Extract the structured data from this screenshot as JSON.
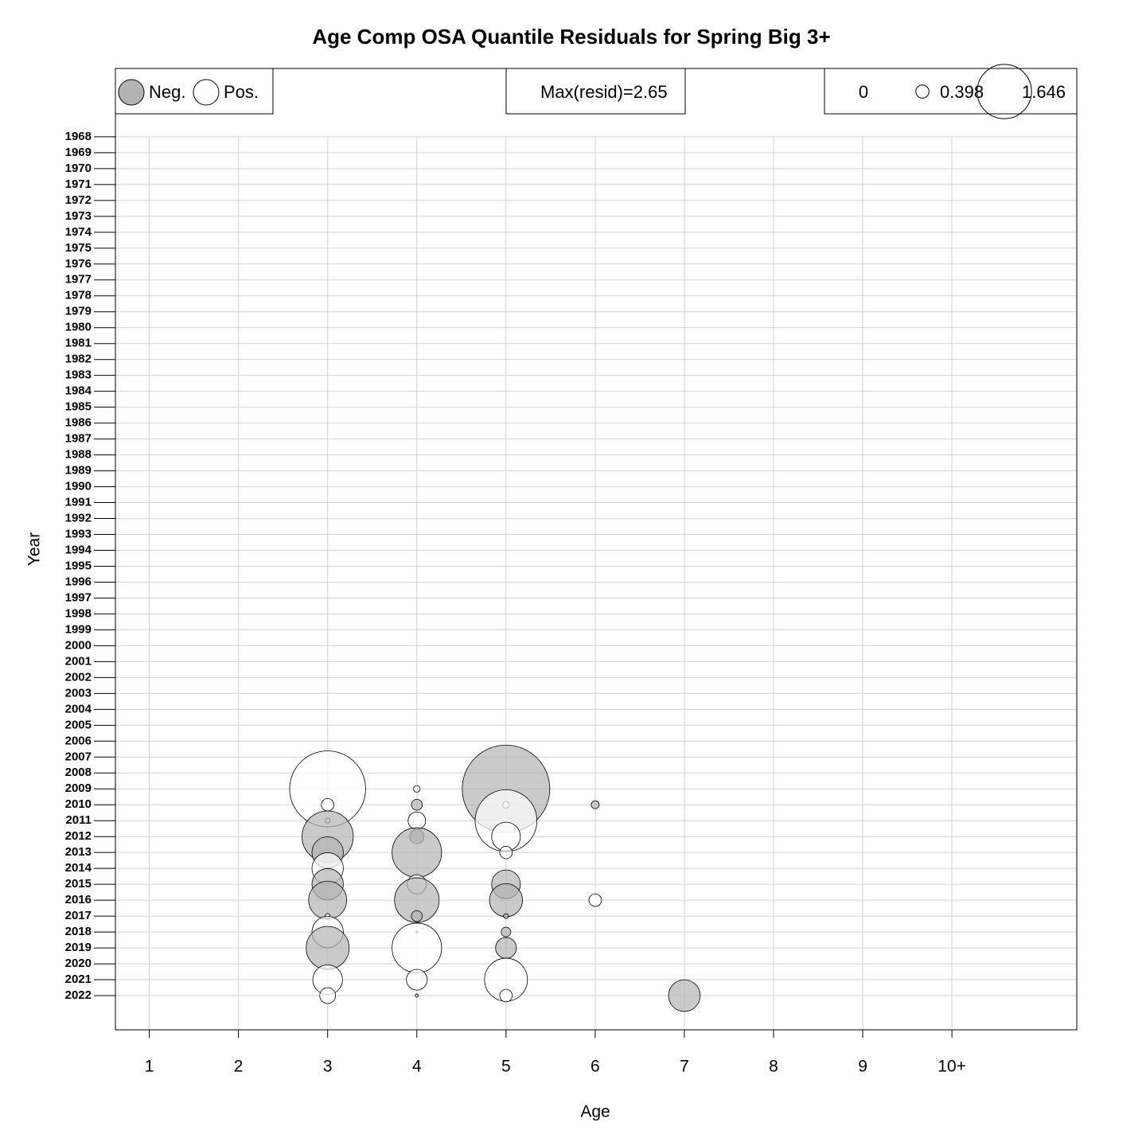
{
  "chart_data": {
    "type": "bubble",
    "title": "Age Comp OSA Quantile Residuals for Spring Big 3+",
    "xlabel": "Age",
    "ylabel": "Year",
    "xlim": [
      0.62,
      11.4
    ],
    "xticks": [
      1,
      2,
      3,
      4,
      5,
      6,
      7,
      8,
      9,
      {
        "value": 10,
        "label": "10+"
      }
    ],
    "ylim": [
      2024.15,
      1963.7
    ],
    "yticks": [
      1968,
      1969,
      1970,
      1971,
      1972,
      1973,
      1974,
      1975,
      1976,
      1977,
      1978,
      1979,
      1980,
      1981,
      1982,
      1983,
      1984,
      1985,
      1986,
      1987,
      1988,
      1989,
      1990,
      1991,
      1992,
      1993,
      1994,
      1995,
      1996,
      1997,
      1998,
      1999,
      2000,
      2001,
      2002,
      2003,
      2004,
      2005,
      2006,
      2007,
      2008,
      2009,
      2010,
      2011,
      2012,
      2013,
      2014,
      2015,
      2016,
      2017,
      2018,
      2019,
      2020,
      2021,
      2022
    ],
    "grid": true,
    "neg_label": "Neg.",
    "pos_label": "Pos.",
    "neg_color": "#b3b3b3",
    "pos_color": "#ffffff",
    "max_label": "Max(resid)=2.65",
    "size_legend": [
      0,
      0.398,
      1.646
    ],
    "points": [
      {
        "age": 3,
        "year": 2009,
        "value": 2.3
      },
      {
        "age": 3,
        "year": 2010,
        "value": 0.38
      },
      {
        "age": 3,
        "year": 2011,
        "value": 0.15
      },
      {
        "age": 3,
        "year": 2012,
        "value": -1.55
      },
      {
        "age": 3,
        "year": 2013,
        "value": -0.95
      },
      {
        "age": 3,
        "year": 2014,
        "value": 0.95
      },
      {
        "age": 3,
        "year": 2015,
        "value": -0.95
      },
      {
        "age": 3,
        "year": 2016,
        "value": -1.15
      },
      {
        "age": 3,
        "year": 2017,
        "value": 0.15
      },
      {
        "age": 3,
        "year": 2018,
        "value": 0.95
      },
      {
        "age": 3,
        "year": 2019,
        "value": -1.3
      },
      {
        "age": 3,
        "year": 2021,
        "value": 0.9
      },
      {
        "age": 3,
        "year": 2022,
        "value": 0.48
      },
      {
        "age": 4,
        "year": 2009,
        "value": 0.2
      },
      {
        "age": 4,
        "year": 2010,
        "value": -0.33
      },
      {
        "age": 4,
        "year": 2011,
        "value": 0.53
      },
      {
        "age": 4,
        "year": 2012,
        "value": -0.43
      },
      {
        "age": 4,
        "year": 2013,
        "value": -1.5
      },
      {
        "age": 4,
        "year": 2015,
        "value": 0.58
      },
      {
        "age": 4,
        "year": 2016,
        "value": -1.35
      },
      {
        "age": 4,
        "year": 2017,
        "value": -0.33
      },
      {
        "age": 4,
        "year": 2018,
        "value": 0.05
      },
      {
        "age": 4,
        "year": 2019,
        "value": 1.5
      },
      {
        "age": 4,
        "year": 2021,
        "value": 0.63
      },
      {
        "age": 4,
        "year": 2022,
        "value": -0.1
      },
      {
        "age": 5,
        "year": 2009,
        "value": -2.65
      },
      {
        "age": 5,
        "year": 2010,
        "value": 0.2
      },
      {
        "age": 5,
        "year": 2011,
        "value": 1.87
      },
      {
        "age": 5,
        "year": 2012,
        "value": 0.87
      },
      {
        "age": 5,
        "year": 2013,
        "value": 0.38
      },
      {
        "age": 5,
        "year": 2015,
        "value": -0.87
      },
      {
        "age": 5,
        "year": 2016,
        "value": -1.0
      },
      {
        "age": 5,
        "year": 2017,
        "value": -0.15
      },
      {
        "age": 5,
        "year": 2018,
        "value": -0.29
      },
      {
        "age": 5,
        "year": 2019,
        "value": -0.63
      },
      {
        "age": 5,
        "year": 2021,
        "value": 1.3
      },
      {
        "age": 5,
        "year": 2022,
        "value": 0.38
      },
      {
        "age": 6,
        "year": 2010,
        "value": -0.24
      },
      {
        "age": 6,
        "year": 2016,
        "value": 0.38
      },
      {
        "age": 7,
        "year": 2022,
        "value": -0.96
      }
    ]
  }
}
